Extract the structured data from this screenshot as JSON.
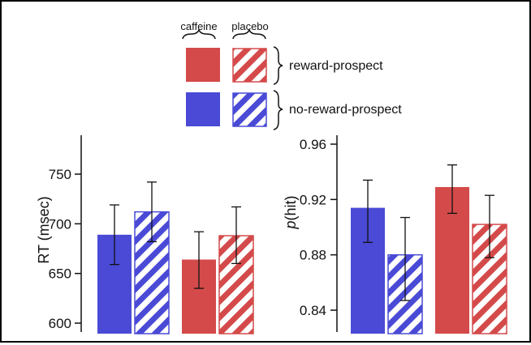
{
  "legend": {
    "col_caffeine": "caffeine",
    "col_placebo": "placebo",
    "row_reward": "reward-prospect",
    "row_noreward": "no-reward-prospect"
  },
  "colors": {
    "blue": "#4a4ad6",
    "red": "#d44a4a",
    "errorbar": "#111111"
  },
  "chart_data": [
    {
      "type": "bar",
      "title": "",
      "xlabel": "",
      "ylabel": "RT (msec)",
      "ylim": [
        595,
        790
      ],
      "yticks": [
        "600",
        "650",
        "700",
        "750"
      ],
      "groups": [
        "no-reward-prospect",
        "reward-prospect"
      ],
      "bars": [
        {
          "condition": "no-reward-prospect",
          "drug": "caffeine",
          "value": 689,
          "err_low": 659,
          "err_high": 719
        },
        {
          "condition": "no-reward-prospect",
          "drug": "placebo",
          "value": 712,
          "err_low": 682,
          "err_high": 742
        },
        {
          "condition": "reward-prospect",
          "drug": "caffeine",
          "value": 664,
          "err_low": 635,
          "err_high": 692
        },
        {
          "condition": "reward-prospect",
          "drug": "placebo",
          "value": 688,
          "err_low": 660,
          "err_high": 717
        }
      ]
    },
    {
      "type": "bar",
      "title": "",
      "xlabel": "",
      "ylabel_prefix": "p",
      "ylabel_suffix": "(hit)",
      "ylim": [
        0.825,
        0.97
      ],
      "yticks": [
        "0.84",
        "0.88",
        "0.92",
        "0.96"
      ],
      "groups": [
        "no-reward-prospect",
        "reward-prospect"
      ],
      "bars": [
        {
          "condition": "no-reward-prospect",
          "drug": "caffeine",
          "value": 0.914,
          "err_low": 0.889,
          "err_high": 0.934
        },
        {
          "condition": "no-reward-prospect",
          "drug": "placebo",
          "value": 0.88,
          "err_low": 0.847,
          "err_high": 0.907
        },
        {
          "condition": "reward-prospect",
          "drug": "caffeine",
          "value": 0.929,
          "err_low": 0.91,
          "err_high": 0.945
        },
        {
          "condition": "reward-prospect",
          "drug": "placebo",
          "value": 0.902,
          "err_low": 0.878,
          "err_high": 0.923
        }
      ]
    }
  ]
}
